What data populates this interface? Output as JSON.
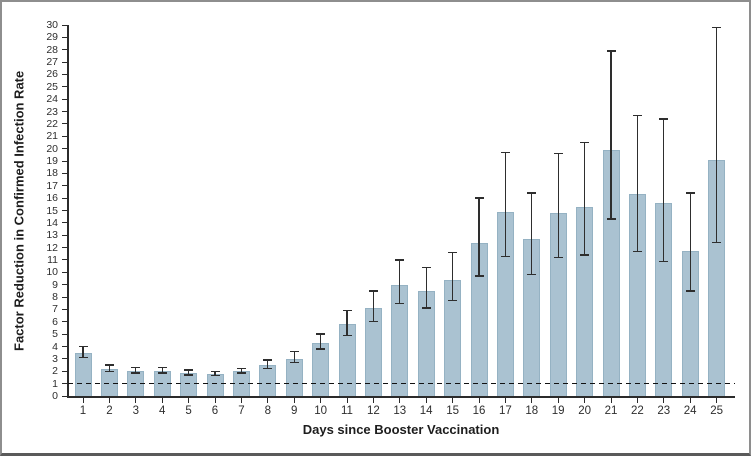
{
  "chart_data": {
    "type": "bar",
    "title": "",
    "xlabel": "Days since Booster Vaccination",
    "ylabel": "Factor Reduction in Confirmed Infection Rate",
    "categories": [
      "1",
      "2",
      "3",
      "4",
      "5",
      "6",
      "7",
      "8",
      "9",
      "10",
      "11",
      "12",
      "13",
      "14",
      "15",
      "16",
      "17",
      "18",
      "19",
      "20",
      "21",
      "22",
      "23",
      "24",
      "25"
    ],
    "values": [
      3.5,
      2.2,
      2.0,
      2.0,
      1.9,
      1.8,
      2.0,
      2.5,
      3.0,
      4.3,
      5.8,
      7.1,
      9.0,
      8.5,
      9.4,
      12.4,
      14.9,
      12.7,
      14.8,
      15.3,
      19.9,
      16.3,
      15.6,
      11.7,
      19.1
    ],
    "error_low": [
      3.1,
      2.0,
      1.85,
      1.85,
      1.7,
      1.65,
      1.85,
      2.2,
      2.7,
      3.8,
      4.9,
      6.0,
      7.5,
      7.1,
      7.7,
      9.7,
      11.3,
      9.8,
      11.2,
      11.4,
      14.3,
      11.7,
      10.9,
      8.5,
      12.4
    ],
    "error_high": [
      4.0,
      2.5,
      2.3,
      2.3,
      2.1,
      2.0,
      2.2,
      2.9,
      3.6,
      5.0,
      6.9,
      8.5,
      11.0,
      10.4,
      11.6,
      16.0,
      19.7,
      16.4,
      19.6,
      20.5,
      27.9,
      22.7,
      22.4,
      16.4,
      29.8
    ],
    "ylim": [
      0,
      30
    ],
    "ytick_step": 1,
    "reference_line_y": 1,
    "grid": false,
    "legend": "none",
    "bar_color": "#aac2d1",
    "bar_border_color": "#95b2c3",
    "error_color": "#2e2e2e",
    "axis_color": "#2b2b2b",
    "reference_line_color": "#111111"
  }
}
